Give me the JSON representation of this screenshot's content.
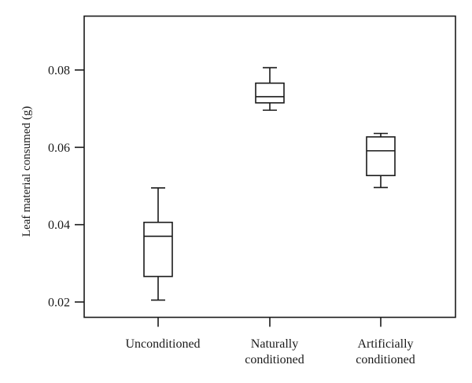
{
  "chart_data": {
    "type": "box",
    "title": "",
    "xlabel": "",
    "ylabel": "Leaf material consumed (g)",
    "ylim": [
      0.0162,
      0.0946
    ],
    "yticks": [
      0.02,
      0.04,
      0.06,
      0.08
    ],
    "ytick_labels": [
      "0.02",
      "0.04",
      "0.06",
      "0.08"
    ],
    "grid": false,
    "legend": null,
    "categories": [
      {
        "label_lines": [
          "Unconditioned"
        ],
        "label": "Unconditioned"
      },
      {
        "label_lines": [
          "Naturally",
          "conditioned"
        ],
        "label": "Naturally conditioned"
      },
      {
        "label_lines": [
          "Artificially",
          "conditioned"
        ],
        "label": "Artificially conditioned"
      }
    ],
    "series": [
      {
        "name": "Unconditioned",
        "whisker_low": 0.0205,
        "q1": 0.0266,
        "median": 0.037,
        "q3": 0.0406,
        "whisker_high": 0.0495
      },
      {
        "name": "Naturally conditioned",
        "whisker_low": 0.0696,
        "q1": 0.0715,
        "median": 0.0731,
        "q3": 0.0766,
        "whisker_high": 0.0806
      },
      {
        "name": "Artificially conditioned",
        "whisker_low": 0.0496,
        "q1": 0.0527,
        "median": 0.0591,
        "q3": 0.0627,
        "whisker_high": 0.0636
      }
    ]
  },
  "colors": {
    "stroke": "#1a1a1a",
    "background": "#ffffff"
  }
}
